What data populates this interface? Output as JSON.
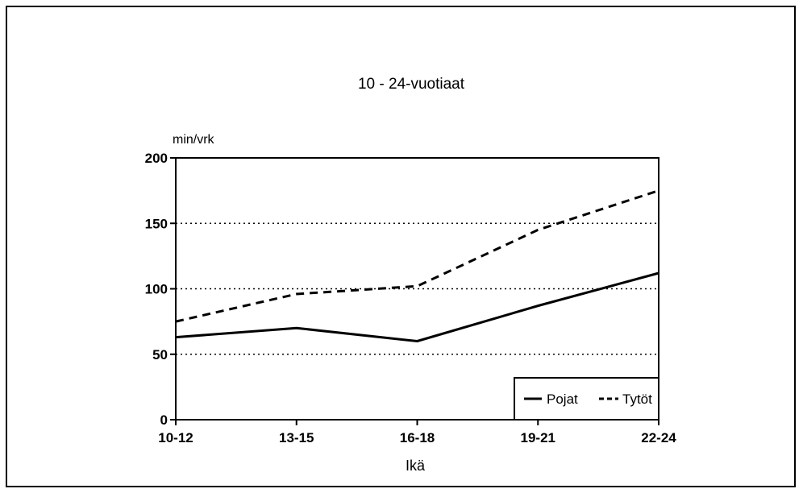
{
  "chart_data": {
    "type": "line",
    "title": "10 - 24-vuotiaat",
    "ylabel": "min/vrk",
    "xlabel": "Ikä",
    "categories": [
      "10-12",
      "13-15",
      "16-18",
      "19-21",
      "22-24"
    ],
    "ylim": [
      0,
      200
    ],
    "yticks": [
      0,
      50,
      100,
      150,
      200
    ],
    "grid": "dotted horizontal at 50, 100, 150",
    "legend_position": "bottom-right",
    "series": [
      {
        "name": "Pojat",
        "values": [
          63,
          70,
          60,
          87,
          112
        ],
        "style": "solid",
        "color": "#000000"
      },
      {
        "name": "Tytöt",
        "values": [
          75,
          96,
          102,
          145,
          175
        ],
        "style": "dashed",
        "color": "#000000"
      }
    ]
  }
}
